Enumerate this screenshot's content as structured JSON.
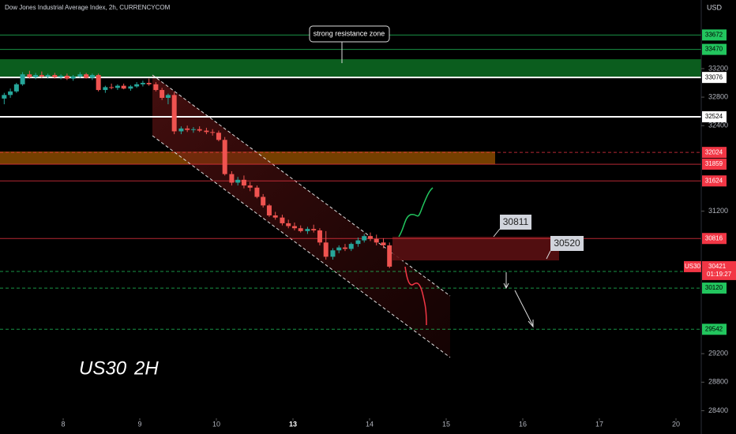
{
  "chart_data": {
    "type": "candlestick",
    "title": "Dow Jones Industrial Average Index, 2h, CURRENCYCOM",
    "currency": "USD",
    "up_color": "#26a69a",
    "down_color": "#ef5350",
    "xlim": [
      -0.825,
      8.33
    ],
    "xticks": [
      {
        "value": 0,
        "label": "8"
      },
      {
        "value": 1,
        "label": "9"
      },
      {
        "value": 2,
        "label": "10"
      },
      {
        "value": 3,
        "label": "13"
      },
      {
        "value": 4,
        "label": "14"
      },
      {
        "value": 5,
        "label": "15"
      },
      {
        "value": 6,
        "label": "16"
      },
      {
        "value": 7,
        "label": "17"
      },
      {
        "value": 8,
        "label": "20"
      }
    ],
    "ylim": [
      28294,
      34163
    ],
    "yticks": [
      33200,
      32800,
      32400,
      31200,
      29200,
      28800,
      28400
    ],
    "x": [
      -0.77,
      -0.69,
      -0.61,
      -0.53,
      -0.44,
      -0.36,
      -0.28,
      -0.2,
      -0.11,
      -0.03,
      0.05,
      0.13,
      0.22,
      0.3,
      0.38,
      0.46,
      0.55,
      0.63,
      0.71,
      0.79,
      0.88,
      0.96,
      1.04,
      1.12,
      1.21,
      1.29,
      1.37,
      1.45,
      1.54,
      1.62,
      1.7,
      1.78,
      1.87,
      1.95,
      2.03,
      2.11,
      2.2,
      2.28,
      2.36,
      2.44,
      2.53,
      2.61,
      2.69,
      2.77,
      2.86,
      2.94,
      3.02,
      3.1,
      3.19,
      3.27,
      3.35,
      3.43,
      3.52,
      3.6,
      3.68,
      3.76,
      3.85,
      3.93,
      4.01,
      4.09,
      4.18,
      4.26
    ],
    "open": [
      32780,
      32830,
      32880,
      32980,
      33120,
      33080,
      33110,
      33090,
      33110,
      33080,
      33100,
      33060,
      33090,
      33120,
      33070,
      33110,
      32900,
      32940,
      32930,
      32960,
      32920,
      32950,
      32980,
      33000,
      32980,
      32900,
      32790,
      32830,
      32320,
      32360,
      32340,
      32350,
      32330,
      32310,
      32300,
      32200,
      31720,
      31600,
      31640,
      31560,
      31530,
      31400,
      31280,
      31140,
      31110,
      31030,
      30990,
      30960,
      30920,
      30950,
      30930,
      30760,
      30560,
      30650,
      30690,
      30670,
      30740,
      30790,
      30850,
      30810,
      30760,
      30720
    ],
    "high": [
      32860,
      32920,
      33000,
      33150,
      33170,
      33140,
      33160,
      33130,
      33140,
      33120,
      33130,
      33110,
      33150,
      33140,
      33130,
      33130,
      32960,
      32990,
      32980,
      32990,
      32970,
      33010,
      33030,
      33060,
      33010,
      32930,
      32850,
      32870,
      32390,
      32400,
      32380,
      32390,
      32370,
      32350,
      32330,
      32240,
      31760,
      31680,
      31700,
      31610,
      31560,
      31440,
      31300,
      31190,
      31150,
      31080,
      31040,
      31000,
      30980,
      31010,
      30960,
      30920,
      30680,
      30720,
      30740,
      30760,
      30830,
      30880,
      30900,
      30870,
      30820,
      30760
    ],
    "low": [
      32700,
      32790,
      32860,
      32960,
      33060,
      33050,
      33070,
      33060,
      33060,
      33050,
      33040,
      33030,
      33070,
      33060,
      33040,
      32880,
      32860,
      32910,
      32900,
      32910,
      32890,
      32930,
      32950,
      32960,
      32880,
      32760,
      32700,
      32280,
      32280,
      32310,
      32300,
      32310,
      32280,
      32260,
      32180,
      31700,
      31560,
      31560,
      31520,
      31480,
      31380,
      31250,
      31120,
      31080,
      31000,
      30960,
      30930,
      30900,
      30880,
      30900,
      30720,
      30520,
      30520,
      30610,
      30640,
      30640,
      30700,
      30760,
      30780,
      30720,
      30680,
      30400
    ],
    "close": [
      32830,
      32880,
      32980,
      33120,
      33080,
      33110,
      33090,
      33110,
      33080,
      33100,
      33060,
      33090,
      33120,
      33070,
      33110,
      32900,
      32940,
      32930,
      32960,
      32920,
      32950,
      32980,
      33000,
      32980,
      32900,
      32790,
      32830,
      32320,
      32360,
      32340,
      32350,
      32330,
      32310,
      32300,
      32200,
      31720,
      31600,
      31640,
      31560,
      31530,
      31400,
      31280,
      31140,
      31110,
      31030,
      30990,
      30960,
      30920,
      30950,
      30930,
      30760,
      30560,
      30650,
      30690,
      30670,
      30740,
      30790,
      30850,
      30810,
      30760,
      30720,
      30421
    ],
    "price_levels": [
      {
        "value": 33672,
        "color": "#22c55e",
        "dashed": false
      },
      {
        "value": 33470,
        "color": "#22c55e",
        "dashed": false
      },
      {
        "value": 33076,
        "color": "#ffffff",
        "dashed": false
      },
      {
        "value": 32524,
        "color": "#ffffff",
        "dashed": false
      },
      {
        "value": 32024,
        "color": "#f23645",
        "dashed": true
      },
      {
        "value": 31859,
        "color": "#f23645",
        "dashed": false
      },
      {
        "value": 31624,
        "color": "#f23645",
        "dashed": false
      },
      {
        "value": 30816,
        "color": "#f23645",
        "dashed": false
      },
      {
        "value": 30354,
        "color": "#22c55e",
        "dashed": true
      },
      {
        "value": 30120,
        "color": "#22c55e",
        "dashed": true
      },
      {
        "value": 29542,
        "color": "#22c55e",
        "dashed": true
      }
    ],
    "last_price": {
      "symbol": "US30",
      "value": 30421,
      "countdown": "01:19:27",
      "color": "#f23645"
    },
    "annotations": {
      "resistance": "strong resistance zone",
      "target_1": "30811",
      "target_2": "30520",
      "symbol": "US30",
      "timeframe": "2H"
    }
  }
}
